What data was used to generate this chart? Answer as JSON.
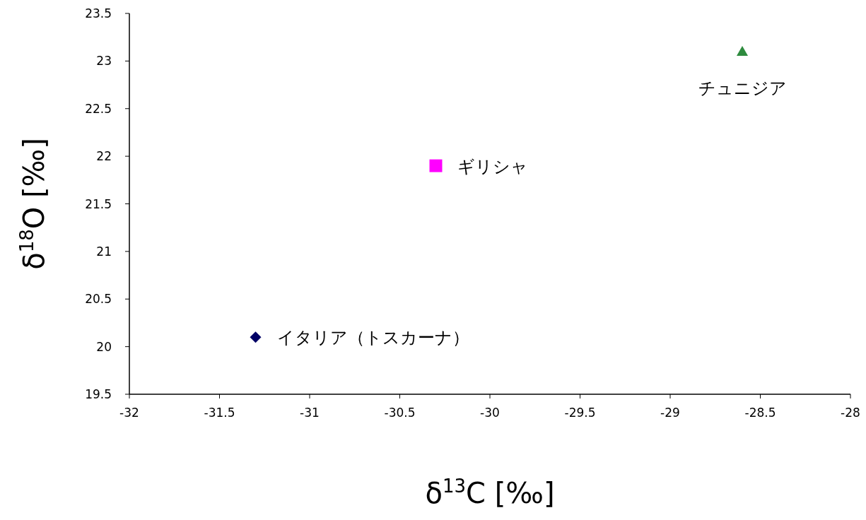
{
  "chart_data": {
    "type": "scatter",
    "xlabel": "δ$^{13}$C [‰]",
    "ylabel": "δ$^{18}$O [‰]",
    "xlim": [
      -32,
      -28
    ],
    "xticks": [
      -32,
      -31.5,
      -31,
      -30.5,
      -30,
      -29.5,
      -29,
      -28.5,
      -28
    ],
    "ylim": [
      19.5,
      23.5
    ],
    "yticks": [
      19.5,
      20,
      20.5,
      21,
      21.5,
      22,
      22.5,
      23,
      23.5
    ],
    "grid": false,
    "series": [
      {
        "name": "イタリア（トスカーナ）",
        "color": "#000066",
        "marker": "diamond",
        "x": [
          -31.3
        ],
        "values": [
          20.1
        ]
      },
      {
        "name": "ギリシャ",
        "color": "#ff00ff",
        "marker": "square",
        "x": [
          -30.3
        ],
        "values": [
          21.9
        ]
      },
      {
        "name": "チュニジア",
        "color": "#2e8b3e",
        "marker": "triangle",
        "x": [
          -28.6
        ],
        "values": [
          23.1
        ]
      }
    ]
  }
}
